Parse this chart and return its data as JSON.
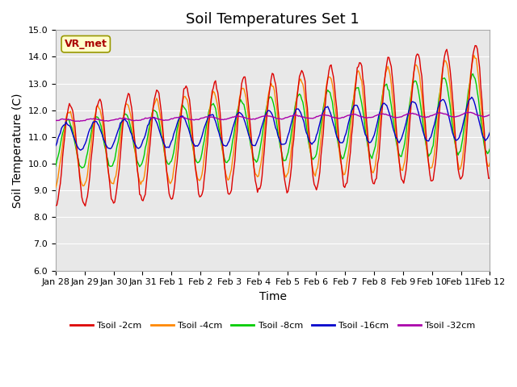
{
  "title": "Soil Temperatures Set 1",
  "xlabel": "Time",
  "ylabel": "Soil Temperature (C)",
  "ylim": [
    6.0,
    15.0
  ],
  "yticks": [
    6.0,
    7.0,
    8.0,
    9.0,
    10.0,
    11.0,
    12.0,
    13.0,
    14.0,
    15.0
  ],
  "xtick_labels": [
    "Jan 28",
    "Jan 29",
    "Jan 30",
    "Jan 31",
    "Feb 1",
    "Feb 2",
    "Feb 3",
    "Feb 4",
    "Feb 5",
    "Feb 6",
    "Feb 7",
    "Feb 8",
    "Feb 9",
    "Feb 10",
    "Feb 11",
    "Feb 12"
  ],
  "legend_labels": [
    "Tsoil -2cm",
    "Tsoil -4cm",
    "Tsoil -8cm",
    "Tsoil -16cm",
    "Tsoil -32cm"
  ],
  "line_colors": [
    "#dd0000",
    "#ff8800",
    "#00cc00",
    "#0000cc",
    "#aa00aa"
  ],
  "annotation_text": "VR_met",
  "annotation_color": "#aa0000",
  "annotation_bg": "#ffffcc",
  "plot_bg": "#e8e8e8",
  "grid_color": "#ffffff",
  "title_fontsize": 13,
  "axis_fontsize": 10,
  "tick_fontsize": 8
}
